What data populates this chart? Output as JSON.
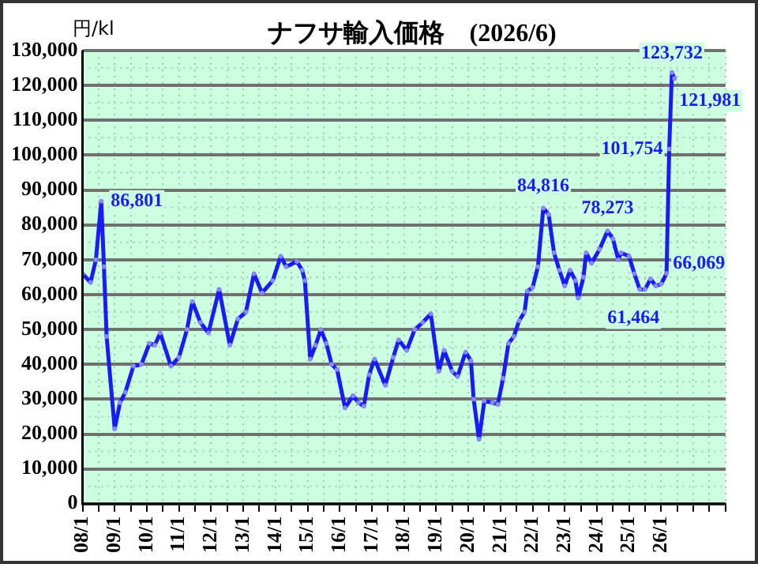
{
  "chart_data": {
    "type": "line",
    "title": "ナフサ輸入価格　(2026/6)",
    "ylabel": "円/kl",
    "x": [
      "2008-01",
      "2008-04",
      "2008-06",
      "2008-08",
      "2008-09",
      "2008-10",
      "2009-01",
      "2009-03",
      "2009-05",
      "2009-08",
      "2009-11",
      "2010-02",
      "2010-04",
      "2010-06",
      "2010-10",
      "2011-01",
      "2011-04",
      "2011-06",
      "2011-09",
      "2011-12",
      "2012-04",
      "2012-08",
      "2012-11",
      "2013-02",
      "2013-05",
      "2013-08",
      "2013-12",
      "2014-03",
      "2014-05",
      "2014-09",
      "2014-11",
      "2014-12",
      "2015-02",
      "2015-04",
      "2015-06",
      "2015-08",
      "2015-10",
      "2015-12",
      "2016-03",
      "2016-06",
      "2016-08",
      "2016-10",
      "2016-12",
      "2017-02",
      "2017-06",
      "2017-09",
      "2017-11",
      "2018-02",
      "2018-05",
      "2018-08",
      "2018-11",
      "2019-02",
      "2019-04",
      "2019-07",
      "2019-09",
      "2019-12",
      "2020-02",
      "2020-03",
      "2020-05",
      "2020-07",
      "2020-10",
      "2020-12",
      "2021-02",
      "2021-04",
      "2021-06",
      "2021-08",
      "2021-10",
      "2021-11",
      "2022-01",
      "2022-03",
      "2022-05",
      "2022-07",
      "2022-09",
      "2022-11",
      "2023-01",
      "2023-03",
      "2023-05",
      "2023-06",
      "2023-08",
      "2023-09",
      "2023-11",
      "2024-02",
      "2024-05",
      "2024-07",
      "2024-09",
      "2024-10",
      "2025-01",
      "2025-03",
      "2025-05",
      "2025-07",
      "2025-09",
      "2025-11",
      "2026-01",
      "2026-03",
      "2026-04",
      "2026-05",
      "2026-06"
    ],
    "series": [
      {
        "color": "#1a1aff",
        "values": [
          66000,
          63500,
          70000,
          86801,
          68000,
          48000,
          21500,
          29000,
          32000,
          39500,
          40000,
          46000,
          45500,
          49000,
          39500,
          42000,
          50000,
          58000,
          52000,
          49000,
          61500,
          45500,
          53000,
          55000,
          66000,
          60500,
          64000,
          71000,
          68000,
          69500,
          67000,
          64000,
          41500,
          45500,
          50000,
          46000,
          40000,
          38500,
          27500,
          31000,
          29000,
          28000,
          37000,
          41500,
          34000,
          42000,
          47000,
          44000,
          50000,
          52000,
          54500,
          38000,
          44000,
          38000,
          36500,
          43500,
          41000,
          30000,
          18500,
          29500,
          29000,
          28500,
          36000,
          46000,
          48000,
          52500,
          55000,
          61000,
          62000,
          68000,
          84816,
          83000,
          72000,
          67000,
          62500,
          67000,
          64000,
          59000,
          65000,
          72000,
          69000,
          73000,
          78273,
          76000,
          70000,
          72000,
          71000,
          66000,
          61464,
          61500,
          64500,
          62500,
          63000,
          66069,
          101754,
          123732,
          121981
        ]
      }
    ],
    "xlim": [
      "2008-01",
      "2028-01"
    ],
    "xticks": [
      {
        "value": "2008-01",
        "label": "08/1"
      },
      {
        "value": "2008-07",
        "label": null
      },
      {
        "value": "2009-01",
        "label": "09/1"
      },
      {
        "value": "2009-07",
        "label": null
      },
      {
        "value": "2010-01",
        "label": "10/1"
      },
      {
        "value": "2010-07",
        "label": null
      },
      {
        "value": "2011-01",
        "label": "11/1"
      },
      {
        "value": "2011-07",
        "label": null
      },
      {
        "value": "2012-01",
        "label": "12/1"
      },
      {
        "value": "2012-07",
        "label": null
      },
      {
        "value": "2013-01",
        "label": "13/1"
      },
      {
        "value": "2013-07",
        "label": null
      },
      {
        "value": "2014-01",
        "label": "14/1"
      },
      {
        "value": "2014-07",
        "label": null
      },
      {
        "value": "2015-01",
        "label": "15/1"
      },
      {
        "value": "2015-07",
        "label": null
      },
      {
        "value": "2016-01",
        "label": "16/1"
      },
      {
        "value": "2016-07",
        "label": null
      },
      {
        "value": "2017-01",
        "label": "17/1"
      },
      {
        "value": "2017-07",
        "label": null
      },
      {
        "value": "2018-01",
        "label": "18/1"
      },
      {
        "value": "2018-07",
        "label": null
      },
      {
        "value": "2019-01",
        "label": "19/1"
      },
      {
        "value": "2019-07",
        "label": null
      },
      {
        "value": "2020-01",
        "label": "20/1"
      },
      {
        "value": "2020-07",
        "label": null
      },
      {
        "value": "2021-01",
        "label": "21/1"
      },
      {
        "value": "2021-07",
        "label": null
      },
      {
        "value": "2022-01",
        "label": "22/1"
      },
      {
        "value": "2022-07",
        "label": null
      },
      {
        "value": "2023-01",
        "label": "23/1"
      },
      {
        "value": "2023-07",
        "label": null
      },
      {
        "value": "2024-01",
        "label": "24/1"
      },
      {
        "value": "2024-07",
        "label": null
      },
      {
        "value": "2025-01",
        "label": "25/1"
      },
      {
        "value": "2025-07",
        "label": null
      },
      {
        "value": "2026-01",
        "label": "26/1"
      },
      {
        "value": "2026-07",
        "label": null
      },
      {
        "value": "2027-01",
        "label": null
      },
      {
        "value": "2027-07",
        "label": null
      },
      {
        "value": "2028-01",
        "label": null
      }
    ],
    "ylim": [
      0,
      130000
    ],
    "yticks": [
      {
        "value": 0,
        "label": "0"
      },
      {
        "value": 10000,
        "label": "10,000"
      },
      {
        "value": 20000,
        "label": "20,000"
      },
      {
        "value": 30000,
        "label": "30,000"
      },
      {
        "value": 40000,
        "label": "40,000"
      },
      {
        "value": 50000,
        "label": "50,000"
      },
      {
        "value": 60000,
        "label": "60,000"
      },
      {
        "value": 70000,
        "label": "70,000"
      },
      {
        "value": 80000,
        "label": "80,000"
      },
      {
        "value": 90000,
        "label": "90,000"
      },
      {
        "value": 100000,
        "label": "100,000"
      },
      {
        "value": 110000,
        "label": "110,000"
      },
      {
        "value": 120000,
        "label": "120,000"
      },
      {
        "value": 130000,
        "label": "130,000"
      }
    ],
    "annotations": [
      {
        "text": "86,801",
        "x": "2008-08",
        "y": 86801
      },
      {
        "text": "84,816",
        "x": "2022-05",
        "y": 84816
      },
      {
        "text": "78,273",
        "x": "2024-05",
        "y": 78273
      },
      {
        "text": "61,464",
        "x": "2025-05",
        "y": 61464
      },
      {
        "text": "66,069",
        "x": "2026-03",
        "y": 66069
      },
      {
        "text": "101,754",
        "x": "2026-04",
        "y": 101754
      },
      {
        "text": "123,732",
        "x": "2026-05",
        "y": 123732
      },
      {
        "text": "121,981",
        "x": "2026-06",
        "y": 121981
      }
    ],
    "grid": true,
    "marker": "circle",
    "line_style": "solid",
    "legend": false
  }
}
